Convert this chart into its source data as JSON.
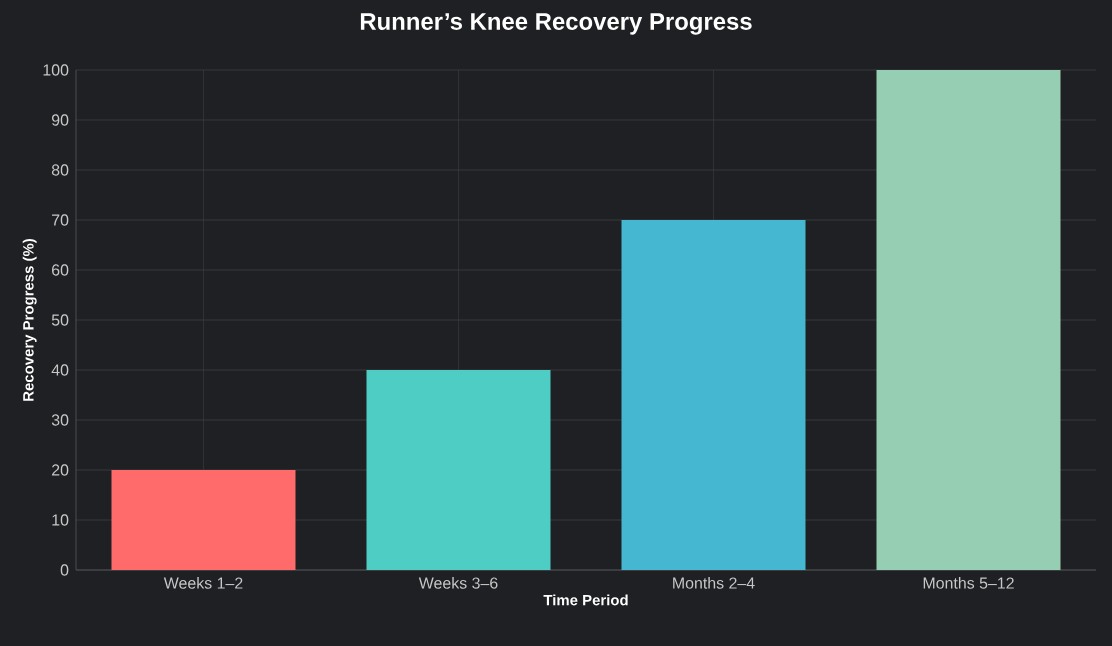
{
  "chart_data": {
    "type": "bar",
    "title": "Runner’s Knee Recovery Progress",
    "xlabel": "Time Period",
    "ylabel": "Recovery Progress (%)",
    "categories": [
      "Weeks 1–2",
      "Weeks 3–6",
      "Months 2–4",
      "Months 5–12"
    ],
    "values": [
      20,
      40,
      70,
      100
    ],
    "colors": [
      "#ff6b6b",
      "#4ecdc4",
      "#45b7d1",
      "#96ceb4"
    ],
    "ylim": [
      0,
      100
    ],
    "yticks": [
      0,
      10,
      20,
      30,
      40,
      50,
      60,
      70,
      80,
      90,
      100
    ],
    "grid": true
  }
}
